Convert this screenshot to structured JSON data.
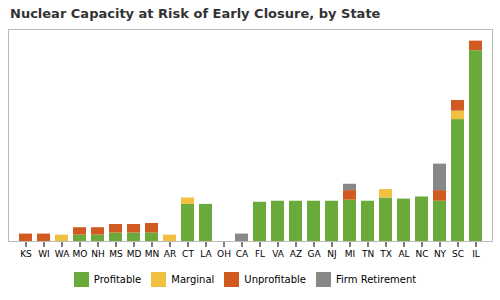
{
  "chart_data": {
    "type": "bar",
    "title": "Nuclear Capacity at Risk of Early Closure, by State",
    "stacked": true,
    "categories": [
      "KS",
      "WI",
      "WA",
      "MO",
      "NH",
      "MS",
      "MD",
      "MN",
      "AR",
      "CT",
      "LA",
      "OH",
      "CA",
      "FL",
      "VA",
      "AZ",
      "GA",
      "NJ",
      "MI",
      "TN",
      "TX",
      "AL",
      "NC",
      "NY",
      "SC",
      "IL"
    ],
    "series": [
      {
        "name": "Profitable",
        "color": "#6aaa3a",
        "values": [
          0.0,
          0.0,
          0.0,
          0.6,
          0.6,
          0.8,
          0.8,
          0.8,
          0.0,
          3.5,
          3.5,
          0.0,
          0.0,
          3.7,
          3.8,
          3.8,
          3.8,
          3.8,
          3.9,
          3.8,
          4.1,
          4.0,
          4.2,
          3.8,
          11.5,
          18.0
        ]
      },
      {
        "name": "Marginal",
        "color": "#f0c040",
        "values": [
          0.0,
          0.0,
          0.6,
          0.0,
          0.0,
          0.0,
          0.0,
          0.0,
          0.6,
          0.6,
          0.0,
          0.0,
          0.0,
          0.0,
          0.0,
          0.0,
          0.0,
          0.0,
          0.0,
          0.0,
          0.8,
          0.0,
          0.0,
          0.0,
          0.8,
          0.0
        ]
      },
      {
        "name": "Unprofitable",
        "color": "#d05a20",
        "values": [
          0.7,
          0.7,
          0.0,
          0.7,
          0.7,
          0.8,
          0.8,
          0.9,
          0.0,
          0.0,
          0.0,
          0.0,
          0.0,
          0.0,
          0.0,
          0.0,
          0.0,
          0.0,
          0.9,
          0.0,
          0.0,
          0.0,
          0.0,
          1.0,
          1.0,
          0.9
        ]
      },
      {
        "name": "Firm Retirement",
        "color": "#888888",
        "values": [
          0.0,
          0.0,
          0.0,
          0.0,
          0.0,
          0.0,
          0.0,
          0.0,
          0.0,
          0.0,
          0.0,
          0.0,
          0.7,
          0.0,
          0.0,
          0.0,
          0.0,
          0.0,
          0.6,
          0.0,
          0.0,
          0.0,
          0.0,
          2.5,
          0.0,
          0.0
        ]
      }
    ],
    "ylim": [
      0,
      20
    ],
    "tick_labels": "x",
    "grid": false,
    "legend": "bottom"
  }
}
